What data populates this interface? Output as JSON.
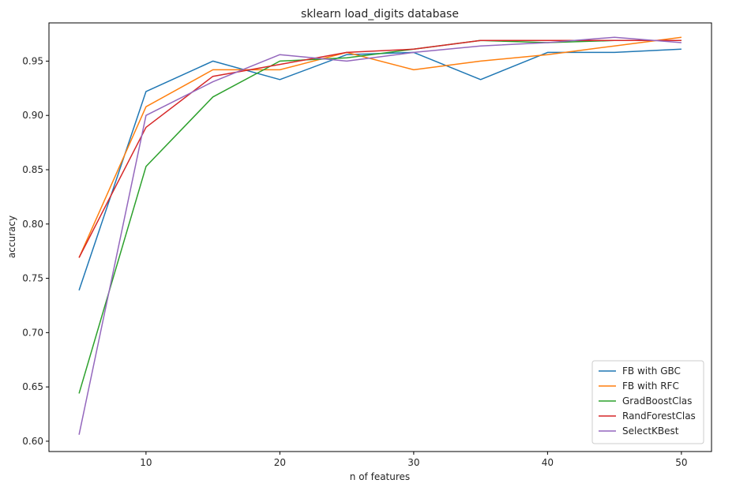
{
  "chart_data": {
    "type": "line",
    "title": "sklearn load_digits database",
    "xlabel": "n of features",
    "ylabel": "accuracy",
    "xlim": [
      2.75,
      52.25
    ],
    "ylim": [
      0.5905,
      0.9852
    ],
    "xticks": [
      10,
      20,
      30,
      40,
      50
    ],
    "xtick_labels": [
      "10",
      "20",
      "30",
      "40",
      "50"
    ],
    "yticks": [
      0.6,
      0.65,
      0.7,
      0.75,
      0.8,
      0.85,
      0.9,
      0.95
    ],
    "ytick_labels": [
      "0.60",
      "0.65",
      "0.70",
      "0.75",
      "0.80",
      "0.85",
      "0.90",
      "0.95"
    ],
    "grid": false,
    "legend_position": "lower-right",
    "x": [
      5,
      10,
      15,
      20,
      25,
      30,
      35,
      40,
      45,
      50
    ],
    "series": [
      {
        "name": "FB with GBC",
        "color": "#1f77b4",
        "values": [
          0.739,
          0.922,
          0.95,
          0.933,
          0.956,
          0.958,
          0.933,
          0.958,
          0.958,
          0.961
        ]
      },
      {
        "name": "FB with RFC",
        "color": "#ff7f0e",
        "values": [
          0.769,
          0.908,
          0.942,
          0.942,
          0.958,
          0.942,
          0.95,
          0.956,
          0.964,
          0.972
        ]
      },
      {
        "name": "GradBoostClas",
        "color": "#2ca02c",
        "values": [
          0.644,
          0.853,
          0.917,
          0.95,
          0.953,
          0.961,
          0.969,
          0.967,
          0.969,
          0.969
        ]
      },
      {
        "name": "RandForestClas",
        "color": "#d62728",
        "values": [
          0.769,
          0.889,
          0.936,
          0.947,
          0.958,
          0.961,
          0.969,
          0.969,
          0.969,
          0.969
        ]
      },
      {
        "name": "SelectKBest",
        "color": "#9467bd",
        "values": [
          0.606,
          0.9,
          0.931,
          0.956,
          0.95,
          0.958,
          0.964,
          0.967,
          0.972,
          0.967
        ]
      }
    ]
  }
}
